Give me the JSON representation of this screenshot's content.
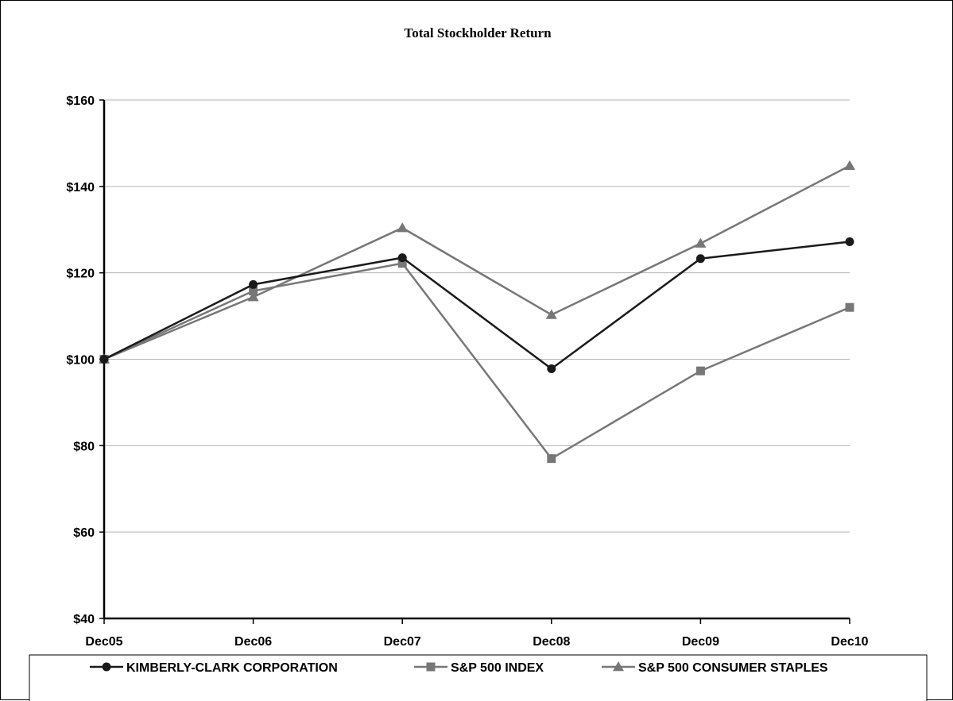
{
  "chart_data": {
    "type": "line",
    "title": "Total Stockholder Return",
    "xlabel": "",
    "ylabel": "",
    "categories": [
      "Dec05",
      "Dec06",
      "Dec07",
      "Dec08",
      "Dec09",
      "Dec10"
    ],
    "ylim": [
      40,
      160
    ],
    "yticks": [
      40,
      60,
      80,
      100,
      120,
      140,
      160
    ],
    "ytick_labels": [
      "$40",
      "$60",
      "$80",
      "$100",
      "$120",
      "$140",
      "$160"
    ],
    "grid": true,
    "legend_position": "bottom",
    "series": [
      {
        "name": "KIMBERLY-CLARK CORPORATION",
        "values": [
          100,
          117.3,
          123.5,
          97.8,
          123.3,
          127.2
        ],
        "color": "#1a1a1a",
        "marker": "circle"
      },
      {
        "name": "S&P 500 INDEX",
        "values": [
          100,
          115.8,
          122.2,
          77.0,
          97.3,
          112.0
        ],
        "color": "#777777",
        "marker": "square"
      },
      {
        "name": "S&P 500 CONSUMER STAPLES",
        "values": [
          100,
          114.4,
          130.4,
          110.3,
          126.8,
          144.8
        ],
        "color": "#777777",
        "marker": "triangle"
      }
    ]
  }
}
